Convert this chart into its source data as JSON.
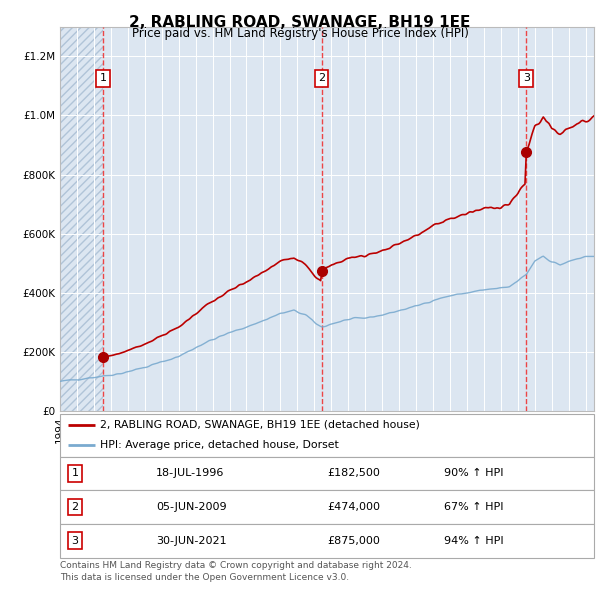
{
  "title": "2, RABLING ROAD, SWANAGE, BH19 1EE",
  "subtitle": "Price paid vs. HM Land Registry's House Price Index (HPI)",
  "legend_line1": "2, RABLING ROAD, SWANAGE, BH19 1EE (detached house)",
  "legend_line2": "HPI: Average price, detached house, Dorset",
  "footer1": "Contains HM Land Registry data © Crown copyright and database right 2024.",
  "footer2": "This data is licensed under the Open Government Licence v3.0.",
  "sales": [
    {
      "num": 1,
      "date": "18-JUL-1996",
      "price": 182500,
      "year": 1996.54,
      "pct": "90%",
      "dir": "↑"
    },
    {
      "num": 2,
      "date": "05-JUN-2009",
      "price": 474000,
      "year": 2009.43,
      "pct": "67%",
      "dir": "↑"
    },
    {
      "num": 3,
      "date": "30-JUN-2021",
      "price": 875000,
      "year": 2021.5,
      "pct": "94%",
      "dir": "↑"
    }
  ],
  "ylim": [
    0,
    1300000
  ],
  "xlim_start": 1994.0,
  "xlim_end": 2025.5,
  "bg_color": "#dce6f1",
  "hatch_color": "#b0c4d8",
  "sale_dot_color": "#aa0000",
  "red_line_color": "#bb0000",
  "blue_line_color": "#7aaacf",
  "dashed_line_color": "#ee3333",
  "box_color": "#cc0000",
  "grid_color": "#ffffff",
  "title_color": "#000000"
}
